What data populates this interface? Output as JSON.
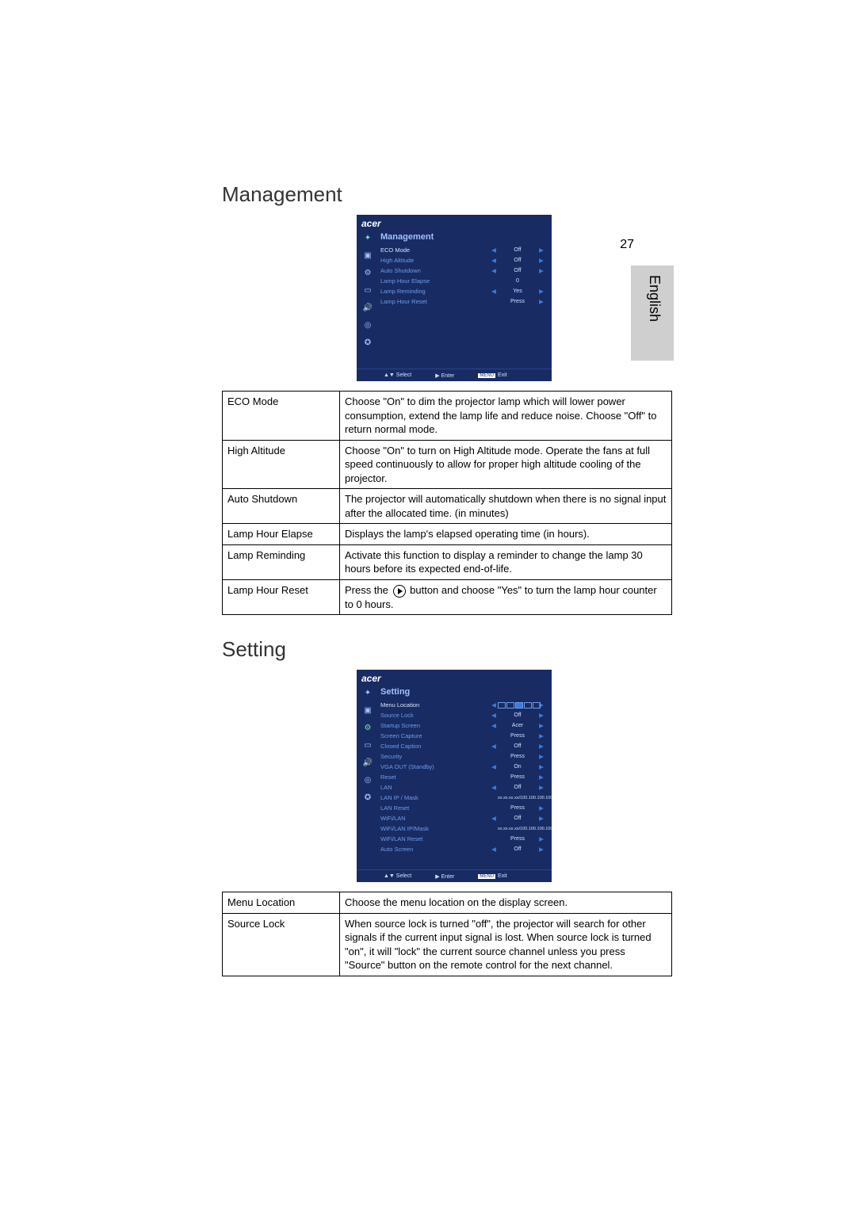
{
  "page_number": "27",
  "side_tab": "English",
  "sections": {
    "management": {
      "title": "Management",
      "osd_logo": "acer",
      "osd_title": "Management",
      "rows": [
        {
          "label": "ECO Mode",
          "val": "Off",
          "hi": true,
          "arrows": true
        },
        {
          "label": "High Altitude",
          "val": "Off",
          "arrows": true
        },
        {
          "label": "Auto Shutdown",
          "val": "Off",
          "arrows": true
        },
        {
          "label": "Lamp Hour Elapse",
          "val": "0",
          "arrows": false
        },
        {
          "label": "Lamp Reminding",
          "val": "Yes",
          "arrows": true
        },
        {
          "label": "Lamp Hour Reset",
          "val": "Press",
          "right_only": true
        }
      ],
      "foot": {
        "select": "▲▼ Select",
        "enter": "▶ Enter",
        "exit_badge": "MENU",
        "exit": "Exit"
      },
      "table": [
        {
          "k": "ECO Mode",
          "v": "Choose \"On\" to dim the projector lamp which will lower power consumption, extend the lamp life and reduce noise.  Choose \"Off\" to return normal mode."
        },
        {
          "k": "High Altitude",
          "v": "Choose \"On\" to turn on High Altitude mode. Operate the fans at full speed continuously to allow for proper high altitude cooling of the projector."
        },
        {
          "k": "Auto Shutdown",
          "v": "The projector will automatically shutdown when there is no signal input after the allocated time. (in minutes)"
        },
        {
          "k": "Lamp Hour Elapse",
          "v": "Displays the lamp's elapsed operating time (in hours)."
        },
        {
          "k": "Lamp Reminding",
          "v": "Activate this function to display a reminder to change the lamp 30 hours before its expected end-of-life."
        },
        {
          "k": "Lamp Hour Reset",
          "v_prefix": "Press the ",
          "v_suffix": " button and choose \"Yes\" to turn the lamp hour counter to 0 hours.",
          "has_play": true
        }
      ]
    },
    "setting": {
      "title": "Setting",
      "osd_logo": "acer",
      "osd_title": "Setting",
      "rows": [
        {
          "label": "Menu Location",
          "loc_boxes": true,
          "arrows": true,
          "hi": true
        },
        {
          "label": "Source Lock",
          "val": "Off",
          "arrows": true
        },
        {
          "label": "Startup Screen",
          "val": "Acer",
          "arrows": true
        },
        {
          "label": "Screen Capture",
          "val": "Press",
          "right_only": true
        },
        {
          "label": "Closed Caption",
          "val": "Off",
          "arrows": true
        },
        {
          "label": "Security",
          "val": "Press",
          "right_only": true
        },
        {
          "label": "VGA OUT (Standby)",
          "val": "On",
          "arrows": true
        },
        {
          "label": "Reset",
          "val": "Press",
          "right_only": true
        },
        {
          "label": "LAN",
          "val": "Off",
          "arrows": true
        },
        {
          "label": "LAN IP / Mask",
          "val": "xx.xx.xx.xx/100.100.100.100",
          "arrows": false,
          "small": true
        },
        {
          "label": "LAN Reset",
          "val": "Press",
          "right_only": true
        },
        {
          "label": "WiFi/LAN",
          "val": "Off",
          "arrows": true
        },
        {
          "label": "WiFi/LAN IP/Mask",
          "val": "xx.xx.xx.xx/100.100.100.100",
          "arrows": false,
          "small": true
        },
        {
          "label": "WiFi/LAN Reset",
          "val": "Press",
          "right_only": true
        },
        {
          "label": "Auto Screen",
          "val": "Off",
          "arrows": true
        }
      ],
      "foot": {
        "select": "▲▼ Select",
        "enter": "▶ Enter",
        "exit_badge": "MENU",
        "exit": "Exit"
      },
      "table": [
        {
          "k": "Menu Location",
          "v": "Choose the menu location on the display screen."
        },
        {
          "k": "Source Lock",
          "v": "When source lock is turned \"off\", the projector will search for other signals if the current input signal is lost. When source lock is turned \"on\", it will \"lock\" the current source channel unless you press \"Source\" button on the remote control for the next channel."
        }
      ]
    }
  },
  "colors": {
    "osd_bg": "#182b63",
    "osd_text": "#a8c8ff",
    "osd_hi": "#d6e6ff",
    "osd_arrow": "#3a7be0"
  }
}
